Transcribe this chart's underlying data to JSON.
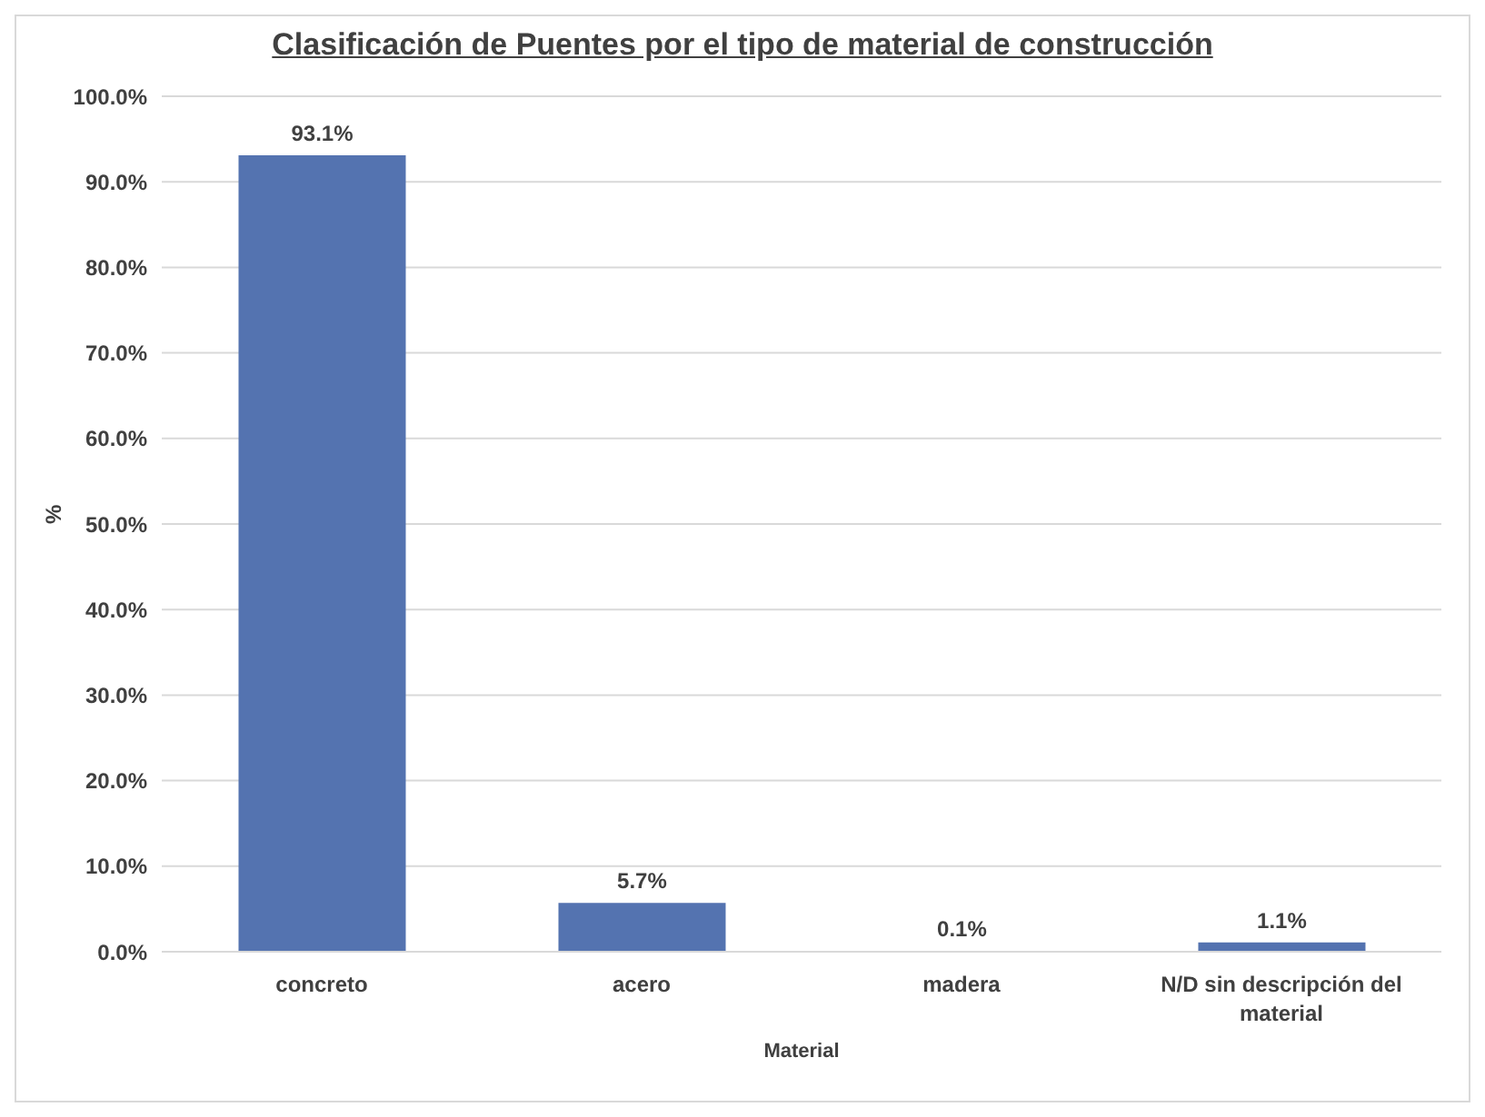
{
  "chart_data": {
    "type": "bar",
    "title": "Clasificación de Puentes por el tipo de material de construcción",
    "xlabel": "Material",
    "ylabel": "%",
    "categories": [
      "concreto",
      "acero",
      "madera",
      "N/D sin descripción del material"
    ],
    "values": [
      93.1,
      5.7,
      0.1,
      1.1
    ],
    "value_labels": [
      "93.1%",
      "5.7%",
      "0.1%",
      "1.1%"
    ],
    "color": "#5473b0",
    "ylim": [
      0,
      100
    ],
    "yticks": [
      {
        "value": 0,
        "label": "0.0%"
      },
      {
        "value": 10,
        "label": "10.0%"
      },
      {
        "value": 20,
        "label": "20.0%"
      },
      {
        "value": 30,
        "label": "30.0%"
      },
      {
        "value": 40,
        "label": "40.0%"
      },
      {
        "value": 50,
        "label": "50.0%"
      },
      {
        "value": 60,
        "label": "60.0%"
      },
      {
        "value": 70,
        "label": "70.0%"
      },
      {
        "value": 80,
        "label": "80.0%"
      },
      {
        "value": 90,
        "label": "90.0%"
      },
      {
        "value": 100,
        "label": "100.0%"
      }
    ],
    "grid": "y",
    "legend": false
  }
}
